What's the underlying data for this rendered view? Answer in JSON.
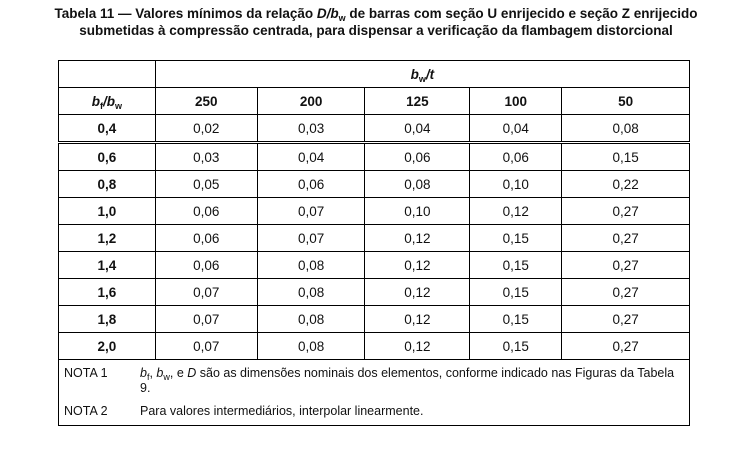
{
  "title": {
    "line1": [
      "Tabela 11 — Valores mínimos da relação ",
      "D/b",
      "w",
      " de barras com seção U enrijecido e seção Z enrijecido"
    ],
    "line2": "submetidas à compressão centrada, para dispensar a verificação da flambagem distorcional"
  },
  "table": {
    "group_header": [
      "b",
      "w",
      "/t"
    ],
    "row_header": [
      "b",
      "f",
      "/b",
      "w"
    ],
    "columns": [
      "250",
      "200",
      "125",
      "100",
      "50"
    ],
    "rows": [
      [
        "0,4",
        "0,02",
        "0,03",
        "0,04",
        "0,04",
        "0,08"
      ],
      [
        "0,6",
        "0,03",
        "0,04",
        "0,06",
        "0,06",
        "0,15"
      ],
      [
        "0,8",
        "0,05",
        "0,06",
        "0,08",
        "0,10",
        "0,22"
      ],
      [
        "1,0",
        "0,06",
        "0,07",
        "0,10",
        "0,12",
        "0,27"
      ],
      [
        "1,2",
        "0,06",
        "0,07",
        "0,12",
        "0,15",
        "0,27"
      ],
      [
        "1,4",
        "0,06",
        "0,08",
        "0,12",
        "0,15",
        "0,27"
      ],
      [
        "1,6",
        "0,07",
        "0,08",
        "0,12",
        "0,15",
        "0,27"
      ],
      [
        "1,8",
        "0,07",
        "0,08",
        "0,12",
        "0,15",
        "0,27"
      ],
      [
        "2,0",
        "0,07",
        "0,08",
        "0,12",
        "0,15",
        "0,27"
      ]
    ],
    "notes": [
      {
        "label": "NOTA 1",
        "text": [
          "b",
          "f",
          ", ",
          "b",
          "w",
          ", e ",
          "D",
          " são as dimensões nominais dos elementos, conforme indicado nas Figuras da Tabela 9."
        ]
      },
      {
        "label": "NOTA 2",
        "text": [
          "Para valores intermediários, interpolar linearmente."
        ]
      }
    ]
  }
}
